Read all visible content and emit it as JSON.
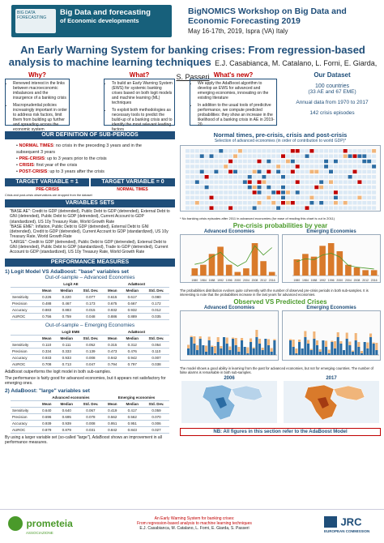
{
  "header": {
    "logo_line1": "Big Data and forecasting",
    "logo_line2": "of Economic developments",
    "logo_mark": "BIG DATA FORECASTING",
    "workshop_title": "BigNOMICS Workshop on Big Data and Economic Forecasting 2019",
    "workshop_sub": "May 16-17th, 2019, Ispra (VA) Italy"
  },
  "title": {
    "main": "An Early Warning System for banking crises: From regression-based analysis to machine learning techniques",
    "authors": "E.J. Casabianca, M. Catalano, L. Forni, E. Giarda, ",
    "presenter": "S. Passeri"
  },
  "columns": {
    "why": {
      "title": "Why?",
      "items": [
        "Renewed interest in the links between macroeconomic imbalances and the insurgence of a banking crisis",
        "Macroprudential policies increasingly important in order to address risk factors, limit them from building up further and spreading across the economic system"
      ]
    },
    "what": {
      "title": "What?",
      "items": [
        "To build an Early Warning System (EWS) for systemic banking crises based on both logit models and machine learning (ML) techniques",
        "To exploit both methodologies as necessary tools to predict the build-up of a banking crisis and to identify the most relevant leading factors"
      ]
    },
    "whats_new": {
      "title": "What's new?",
      "items": [
        "We apply the AdaBoost algorithm to develop an EWS for advanced and emerging economies, innovating on the existing literature",
        "In addition to the usual tools of predictive performance, we compute predicted probabilities: they show an increase in the likelihood of a banking crisis in AE in 2019-20"
      ]
    },
    "dataset": {
      "title": "Our Dataset",
      "countries": "100 countries",
      "split": "(33 AE and 67 EME)",
      "range": "Annual data from 1970 to 2017",
      "episodes": "142 crisis episodes"
    }
  },
  "subperiods": {
    "header": "OUR DEFINITION OF SUB-PERIODS",
    "items": [
      {
        "key": "NORMAL TIMES",
        "text": ": no crisis in the preceding 3 years and in the subsequent 3 years"
      },
      {
        "key": "PRE-CRISIS",
        "text": ": up to 3 years prior to the crisis"
      },
      {
        "key": "CRISIS",
        "text": ": first year of the crisis"
      },
      {
        "key": "POST-CRISIS",
        "text": ": up to 3 years after the crisis"
      }
    ],
    "target1": "TARGET VARIABLE = 1",
    "target0": "TARGET VARIABLE = 0",
    "target1_sub": "PRE-CRISIS",
    "target0_sub": "NORMAL TIMES",
    "note": "Crisis and post-crisis observations are dropped from the dataset"
  },
  "varsets": {
    "header": "VARIABLES SETS",
    "base_ae": "\"BASE AE\": Credit to GDP (detrended), Public Debt to GDP (detrended), External Debt to GNI (detrended), Public Debt to GDP (detrended), Current Account to GDP (standardized), US 10y Treasury Rate, World Growth Rate",
    "base_eme": "\"BASE EME\": Inflation, Public Debt to GDP (detrended), External Debt to GNI (detrended), Credit to GDP (detrended), Current Account to GDP (standardized), US 10y Treasury Rate, World Growth Rate",
    "large": "\"LARGE\": Credit to GDP (detrended), Public Debt to GDP (detrended), External Debt to GNI (detrended), Public Debt to GDP (standardized), Trade to GDP (detrended), Current Account to GDP (standardized), US 10y Treasury Rate, World Growth Rate"
  },
  "perf": {
    "header": "PERFORMANCE MEASURES",
    "s1_title": "1) Logit Model VS AdaBoost: \"base\" variables set",
    "oos_ae": "Out-of-sample – Advanced Economies",
    "oos_eme": "Out-of-sample – Emerging Economies",
    "cols": [
      "",
      "Mean",
      "Median",
      "Std. Dev.",
      "Mean",
      "Median",
      "Std. Dev."
    ],
    "grp1": "Logit AE",
    "grp2": "AdaBoost",
    "grp3": "Logit EME",
    "ae_rows": [
      [
        "Sensitivity",
        "0.226",
        "0.220",
        "0.077",
        "0.615",
        "0.617",
        "0.080"
      ],
      [
        "Precision",
        "0.488",
        "0.467",
        "0.173",
        "0.675",
        "0.667",
        "0.172"
      ],
      [
        "Accuracy",
        "0.883",
        "0.883",
        "0.015",
        "0.932",
        "0.932",
        "0.012"
      ],
      [
        "AUROC",
        "0.756",
        "0.759",
        "0.048",
        "0.886",
        "0.889",
        "0.035"
      ]
    ],
    "eme_rows": [
      [
        "Sensitivity",
        "0.110",
        "0.111",
        "0.052",
        "0.315",
        "0.312",
        "0.054"
      ],
      [
        "Precision",
        "0.334",
        "0.333",
        "0.139",
        "0.473",
        "0.476",
        "0.110"
      ],
      [
        "Accuracy",
        "0.933",
        "0.933",
        "0.008",
        "0.942",
        "0.942",
        "0.007"
      ],
      [
        "AUROC",
        "0.708",
        "0.713",
        "0.047",
        "0.794",
        "0.797",
        "0.038"
      ]
    ],
    "note1": "AdaBoost outperforms the logit model in both sub-samples.",
    "note2": "The performance is fairly good for advanced economies, but it appears not satisfactory for emerging ones.",
    "s2_title": "2) AdaBoost: \"large\" variables set",
    "adv": "Advanced economies",
    "emg": "Emerging economies",
    "large_rows": [
      [
        "Sensitivity",
        "0.640",
        "0.640",
        "0.067",
        "0.419",
        "0.417",
        "0.059"
      ],
      [
        "Precision",
        "0.696",
        "0.695",
        "0.078",
        "0.562",
        "0.562",
        "0.070"
      ],
      [
        "Accuracy",
        "0.939",
        "0.939",
        "0.008",
        "0.951",
        "0.951",
        "0.006"
      ],
      [
        "AUROC",
        "0.879",
        "0.879",
        "0.031",
        "0.842",
        "0.843",
        "0.027"
      ]
    ],
    "note3": "By using a larger variable set (so-called \"large\"), AdaBoost shows an improvement in all performance measures."
  },
  "right": {
    "nt_title": "Normal times, pre-crisis, crisis and post-crisis",
    "nt_sub": "Selection of advanced economies (in order of contribution to world GDP)*",
    "nt_note": "* No banking crisis episodes after 2011 in advanced economies (for ease of reading this chart is cut in 2011)",
    "prob_title": "Pre-crisis probabilities by year",
    "prob_adv": "Advanced Economies",
    "prob_emg": "Emerging Economies",
    "prob_note": "The probabilities distribution evolves quite coherently with the number of observed pre-crisis periods in both sub-samples. It is interesting to note that the probabilities increase in the last years for advanced economies.",
    "ovp_title": "Observed VS Predicted Crises",
    "ovp_adv": "Advanced Economies",
    "ovp_emg": "Emerging Economies",
    "ovp_note": "The model shows a good ability in learning from the past for advanced economies, but not for emerging countries. The number of false alarms is remarkable in both sub-samples.",
    "map_2006": "2006",
    "map_2017": "2017",
    "map_note": "NB: All figures in this section refer to the AdaBoost Model"
  },
  "footer": {
    "org": "prometeia",
    "org_sub": "ASSOCIAZIONE",
    "line1": "An Early Warning System for banking crises:",
    "line2": "From regression-based analysis to machine learning techniques",
    "line3": "E.J. Casabianca, M. Catalano, L. Forni, E. Giarda, S. Passeri",
    "jrc": "JRC",
    "ec": "EUROPEAN COMMISSION"
  },
  "chart_data": [
    {
      "type": "bar",
      "title": "Advanced Economies",
      "x": [
        "1980",
        "1984",
        "1988",
        "1992",
        "1996",
        "2000",
        "2004",
        "2008",
        "2012",
        "2016"
      ],
      "series": [
        {
          "values": [
            2,
            3,
            6,
            8,
            3,
            1,
            2,
            9,
            4,
            1
          ]
        }
      ],
      "line": [
        0.12,
        0.14,
        0.2,
        0.25,
        0.16,
        0.1,
        0.15,
        0.32,
        0.22,
        0.3
      ]
    },
    {
      "type": "bar",
      "title": "Emerging Economies",
      "x": [
        "1980",
        "1984",
        "1988",
        "1992",
        "1996",
        "2000",
        "2004",
        "2008",
        "2012",
        "2016"
      ],
      "series": [
        {
          "values": [
            6,
            8,
            7,
            11,
            12,
            9,
            4,
            3,
            2,
            2
          ]
        }
      ],
      "line": [
        0.15,
        0.18,
        0.17,
        0.22,
        0.24,
        0.2,
        0.11,
        0.09,
        0.08,
        0.07
      ]
    }
  ]
}
